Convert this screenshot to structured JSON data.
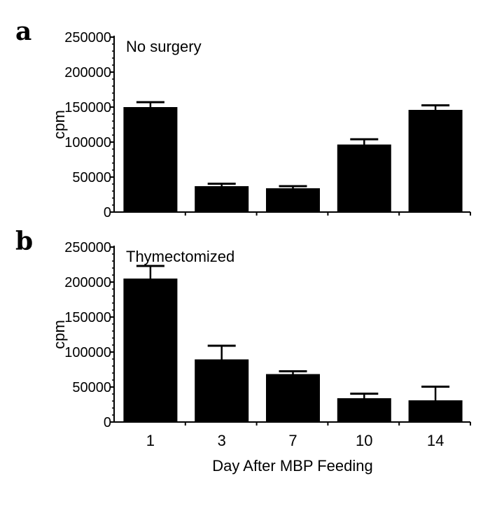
{
  "chart_data": [
    {
      "panel_label": "a",
      "type": "bar",
      "annotation": "No surgery",
      "ylabel": "cpm",
      "xlabel": "",
      "categories": [
        "1",
        "3",
        "7",
        "10",
        "14"
      ],
      "values": [
        150000,
        37000,
        34000,
        96500,
        146000
      ],
      "error_upper": [
        157000,
        40500,
        37000,
        104000,
        152500
      ],
      "ylim": [
        0,
        250000
      ],
      "yticks": [
        "0",
        "50000",
        "100000",
        "150000",
        "200000",
        "250000"
      ],
      "grid": false,
      "bar_color": "#000000"
    },
    {
      "panel_label": "b",
      "type": "bar",
      "annotation": "Thymectomized",
      "ylabel": "cpm",
      "xlabel": "Day After MBP Feeding",
      "categories": [
        "1",
        "3",
        "7",
        "10",
        "14"
      ],
      "values": [
        205000,
        89500,
        68500,
        34000,
        31000
      ],
      "error_upper": [
        223000,
        109000,
        72500,
        40500,
        50500
      ],
      "ylim": [
        0,
        250000
      ],
      "yticks": [
        "0",
        "50000",
        "100000",
        "150000",
        "200000",
        "250000"
      ],
      "grid": false,
      "bar_color": "#000000"
    }
  ]
}
